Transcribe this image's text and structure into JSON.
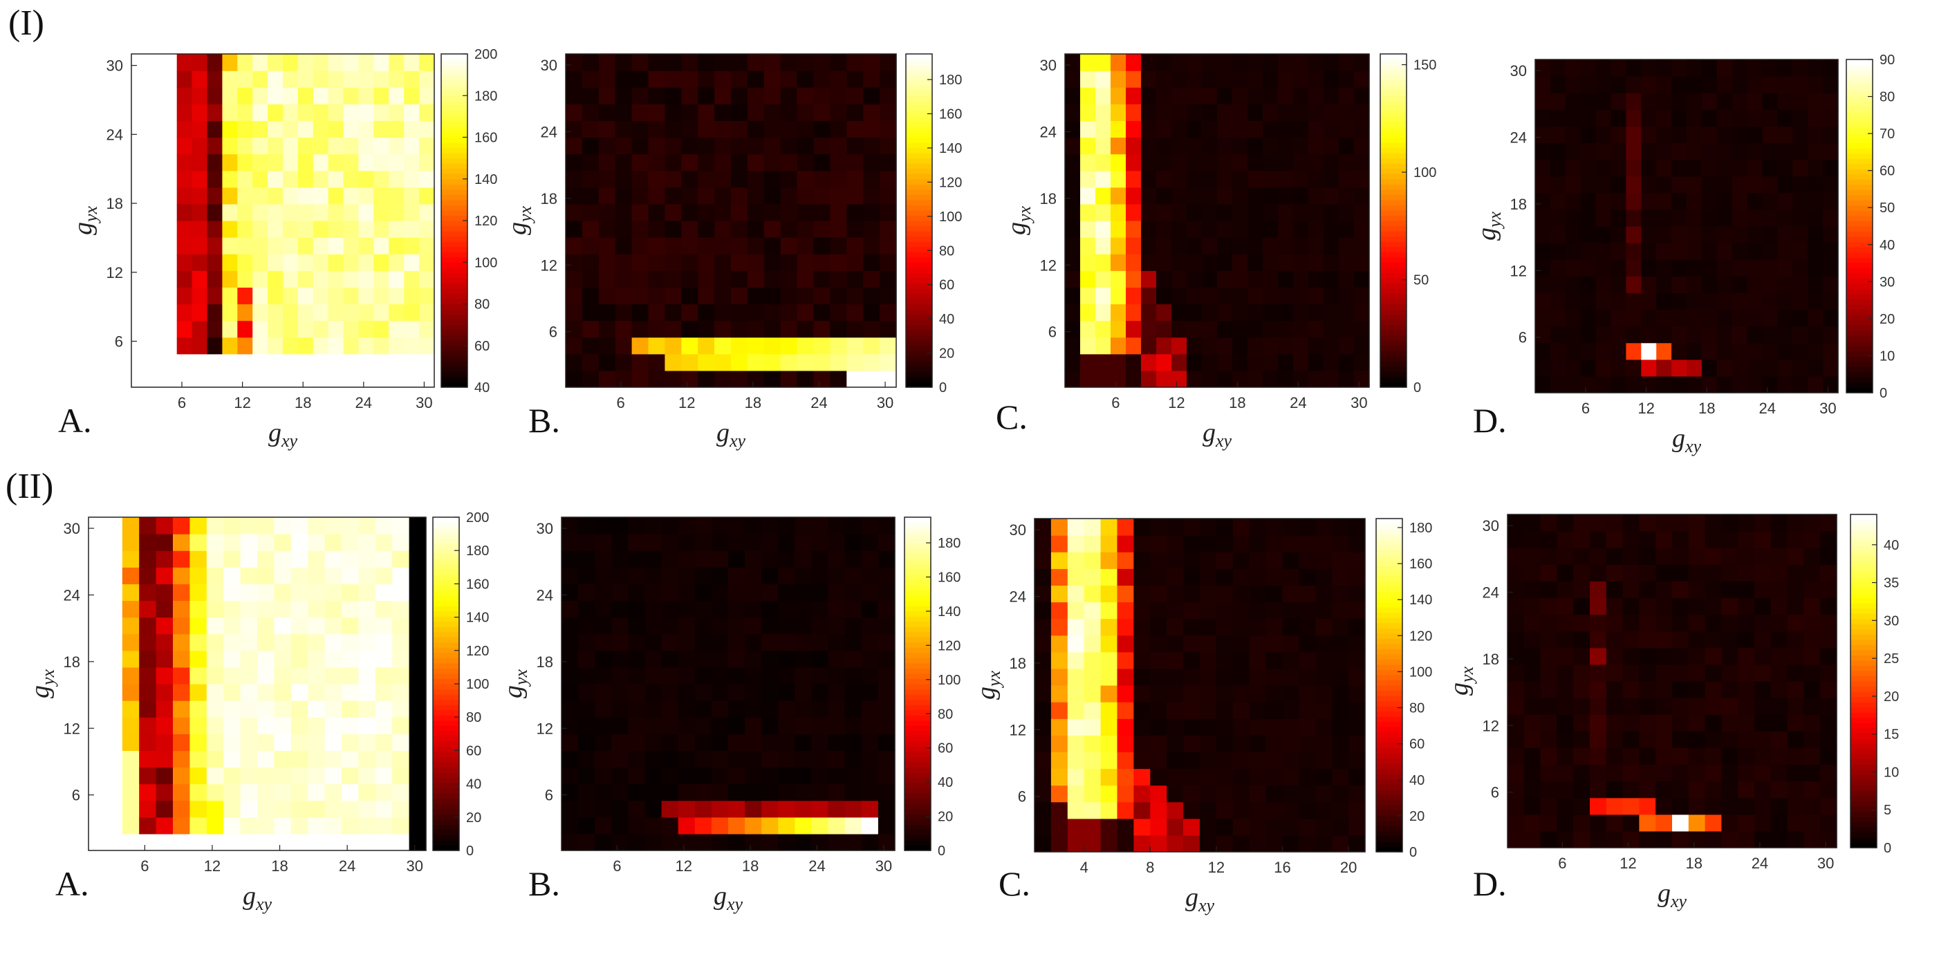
{
  "figure": {
    "row_labels": [
      "(I)",
      "(II)"
    ],
    "colormap": "hot"
  },
  "chart_data": [
    {
      "id": "I-A",
      "panel_label": "A.",
      "type": "heatmap",
      "xlabel_base": "g",
      "xlabel_sub": "xy",
      "ylabel_base": "g",
      "ylabel_sub": "yx",
      "xlim": [
        1,
        31
      ],
      "ylim": [
        2,
        31
      ],
      "xticks": [
        6,
        12,
        18,
        24,
        30
      ],
      "yticks": [
        6,
        12,
        18,
        24,
        30
      ],
      "colorbar": {
        "min": 40,
        "max": 200,
        "ticks": [
          40,
          60,
          80,
          100,
          120,
          140,
          160,
          180,
          200
        ]
      },
      "grid_n": 20,
      "description_pattern": "dark red/black bands at g_xy 4-8, very high (white-yellow) elsewhere",
      "lcols": [
        4,
        5,
        6
      ],
      "lrowmin": 5
    },
    {
      "id": "I-B",
      "panel_label": "B.",
      "type": "heatmap",
      "xlabel_base": "g",
      "xlabel_sub": "xy",
      "ylabel_base": "g",
      "ylabel_sub": "yx",
      "xlim": [
        1,
        31
      ],
      "ylim": [
        1,
        31
      ],
      "xticks": [
        6,
        12,
        18,
        24,
        30
      ],
      "yticks": [
        6,
        12,
        18,
        24,
        30
      ],
      "colorbar": {
        "min": 0,
        "max": 195,
        "ticks": [
          0,
          20,
          40,
          60,
          80,
          100,
          120,
          140,
          160,
          180
        ]
      },
      "grid_n": 20
    },
    {
      "id": "I-C",
      "panel_label": "C.",
      "type": "heatmap",
      "xlabel_base": "g",
      "xlabel_sub": "xy",
      "ylabel_base": "g",
      "ylabel_sub": "yx",
      "xlim": [
        1,
        31
      ],
      "ylim": [
        1,
        31
      ],
      "xticks": [
        6,
        12,
        18,
        24,
        30
      ],
      "yticks": [
        6,
        12,
        18,
        24,
        30
      ],
      "colorbar": {
        "min": 0,
        "max": 155,
        "ticks": [
          0,
          50,
          100,
          150
        ]
      },
      "grid_n": 20
    },
    {
      "id": "I-D",
      "panel_label": "D.",
      "type": "heatmap",
      "xlabel_base": "g",
      "xlabel_sub": "xy",
      "ylabel_base": "g",
      "ylabel_sub": "yx",
      "xlim": [
        1,
        31
      ],
      "ylim": [
        1,
        31
      ],
      "xticks": [
        6,
        12,
        18,
        24,
        30
      ],
      "yticks": [
        6,
        12,
        18,
        24,
        30
      ],
      "colorbar": {
        "min": 0,
        "max": 90,
        "ticks": [
          0,
          10,
          20,
          30,
          40,
          50,
          60,
          70,
          80,
          90
        ]
      },
      "grid_n": 20
    },
    {
      "id": "II-A",
      "panel_label": "A.",
      "type": "heatmap",
      "xlabel_base": "g",
      "xlabel_sub": "xy",
      "ylabel_base": "g",
      "ylabel_sub": "yx",
      "xlim": [
        1,
        31
      ],
      "ylim": [
        1,
        31
      ],
      "xticks": [
        6,
        12,
        18,
        24,
        30
      ],
      "yticks": [
        6,
        12,
        18,
        24,
        30
      ],
      "colorbar": {
        "min": 0,
        "max": 200,
        "ticks": [
          0,
          20,
          40,
          60,
          80,
          100,
          120,
          140,
          160,
          180,
          200
        ]
      },
      "grid_n": 20
    },
    {
      "id": "II-B",
      "panel_label": "B.",
      "type": "heatmap",
      "xlabel_base": "g",
      "xlabel_sub": "xy",
      "ylabel_base": "g",
      "ylabel_sub": "yx",
      "xlim": [
        1,
        31
      ],
      "ylim": [
        1,
        31
      ],
      "xticks": [
        6,
        12,
        18,
        24,
        30
      ],
      "yticks": [
        6,
        12,
        18,
        24,
        30
      ],
      "colorbar": {
        "min": 0,
        "max": 195,
        "ticks": [
          0,
          20,
          40,
          60,
          80,
          100,
          120,
          140,
          160,
          180
        ]
      },
      "grid_n": 20
    },
    {
      "id": "II-C",
      "panel_label": "C.",
      "type": "heatmap",
      "xlabel_base": "g",
      "xlabel_sub": "xy",
      "ylabel_base": "g",
      "ylabel_sub": "yx",
      "xlim": [
        1,
        21
      ],
      "ylim": [
        1,
        31
      ],
      "xticks": [
        4,
        8,
        12,
        16,
        20
      ],
      "yticks": [
        6,
        12,
        18,
        24,
        30
      ],
      "colorbar": {
        "min": 0,
        "max": 185,
        "ticks": [
          0,
          20,
          40,
          60,
          80,
          100,
          120,
          140,
          160,
          180
        ]
      },
      "grid_n": 20
    },
    {
      "id": "II-D",
      "panel_label": "D.",
      "type": "heatmap",
      "xlabel_base": "g",
      "xlabel_sub": "xy",
      "ylabel_base": "g",
      "ylabel_sub": "yx",
      "xlim": [
        1,
        31
      ],
      "ylim": [
        1,
        31
      ],
      "xticks": [
        6,
        12,
        18,
        24,
        30
      ],
      "yticks": [
        6,
        12,
        18,
        24,
        30
      ],
      "colorbar": {
        "min": 0,
        "max": 44,
        "ticks": [
          0,
          5,
          10,
          15,
          20,
          25,
          30,
          35,
          40
        ]
      },
      "grid_n": 20
    }
  ]
}
